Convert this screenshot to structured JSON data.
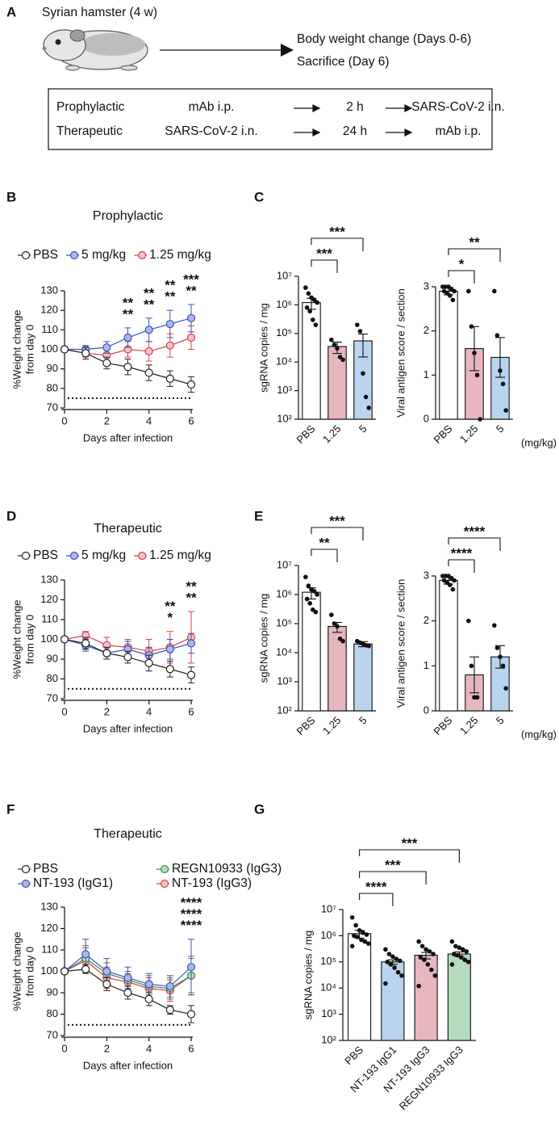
{
  "diagram": {
    "panel": "A",
    "subject": "Syrian hamster (4 w)",
    "outcomes": [
      "Body weight change (Days 0-6)",
      "Sacrifice (Day 6)"
    ],
    "schedule": [
      [
        "Prophylactic",
        "mAb i.p.",
        "2 h",
        "SARS-CoV-2 i.n."
      ],
      [
        "Therapeutic",
        "SARS-CoV-2 i.n.",
        "24 h",
        "mAb i.p."
      ]
    ]
  },
  "chart_data": [
    {
      "type": "line",
      "panel": "B",
      "title": "Prophylactic",
      "x": [
        0,
        1,
        2,
        3,
        4,
        5,
        6
      ],
      "xlim": [
        0,
        6
      ],
      "xticks": [
        0,
        2,
        4,
        6
      ],
      "ylim": [
        70,
        130
      ],
      "yticks": [
        70,
        80,
        90,
        100,
        110,
        120,
        130
      ],
      "x_label": "Days after infection",
      "y_label": [
        "%Weight change",
        "from day 0"
      ],
      "reference_line": 75,
      "legend": "top",
      "series": [
        {
          "name": "PBS",
          "color": "#222222",
          "marker_fill": "#ffffff",
          "values": [
            100,
            98,
            93,
            91,
            88,
            85,
            82
          ],
          "errors": [
            0,
            3,
            3,
            4,
            4,
            4,
            4
          ]
        },
        {
          "name": "5 mg/kg",
          "color": "#3f51b5",
          "marker_fill": "#aab8e8",
          "values": [
            100,
            100,
            101,
            106,
            110,
            113,
            116
          ],
          "errors": [
            0,
            2,
            3,
            5,
            6,
            7,
            7
          ]
        },
        {
          "name": "1.25 mg/kg",
          "color": "#d9404f",
          "marker_fill": "#f4c2c8",
          "values": [
            100,
            98,
            97,
            100,
            99,
            102,
            106
          ],
          "errors": [
            0,
            2,
            3,
            4,
            5,
            6,
            6
          ]
        }
      ],
      "annotations": [
        {
          "x": 3,
          "labels": [
            {
              "text": "**",
              "color": "#2e3192"
            },
            {
              "text": "**",
              "color": "#b5222c"
            }
          ]
        },
        {
          "x": 4,
          "labels": [
            {
              "text": "**",
              "color": "#2e3192"
            },
            {
              "text": "**",
              "color": "#b5222c"
            }
          ]
        },
        {
          "x": 5,
          "labels": [
            {
              "text": "**",
              "color": "#2e3192"
            },
            {
              "text": "**",
              "color": "#b5222c"
            }
          ]
        },
        {
          "x": 6,
          "labels": [
            {
              "text": "***",
              "color": "#2e3192"
            },
            {
              "text": "**",
              "color": "#b5222c"
            }
          ]
        }
      ]
    },
    {
      "type": "bar",
      "panel": "C",
      "yscale": "log",
      "categories": [
        "PBS",
        "1.25",
        "5"
      ],
      "values": [
        1200000,
        35000,
        55000
      ],
      "errors": [
        500000,
        15000,
        40000
      ],
      "colors": [
        "#ffffff",
        "#e7b6bf",
        "#b9d4ee"
      ],
      "points": [
        [
          4000000,
          2500000,
          1800000,
          1500000,
          1200000,
          800000,
          600000,
          300000,
          200000
        ],
        [
          60000,
          40000,
          30000,
          15000,
          12000
        ],
        [
          200000,
          120000,
          4000,
          600,
          250
        ]
      ],
      "ylim": [
        100,
        10000000
      ],
      "yticks": [
        {
          "value": 100,
          "label": "10²"
        },
        {
          "value": 1000,
          "label": "10³"
        },
        {
          "value": 10000,
          "label": "10⁴"
        },
        {
          "value": 100000,
          "label": "10⁵"
        },
        {
          "value": 1000000,
          "label": "10⁶"
        },
        {
          "value": 10000000,
          "label": "10⁷"
        }
      ],
      "y_label": "sgRNA copies / mg",
      "brackets": [
        {
          "from": "PBS",
          "to": "1.25",
          "label": "***"
        },
        {
          "from": "PBS",
          "to": "5",
          "label": "***"
        }
      ]
    },
    {
      "type": "bar",
      "categories": [
        "PBS",
        "1.25",
        "5"
      ],
      "values": [
        2.9,
        1.6,
        1.4
      ],
      "errors": [
        0.08,
        0.5,
        0.45
      ],
      "colors": [
        "#ffffff",
        "#e7b6bf",
        "#b9d4ee"
      ],
      "points": [
        [
          3,
          3,
          3,
          2.95,
          2.9,
          2.9,
          2.85,
          2.8,
          2.7
        ],
        [
          2.9,
          2.1,
          1.5,
          1,
          0
        ],
        [
          2.9,
          1.9,
          1.1,
          0.8,
          0.2
        ]
      ],
      "ylim": [
        0,
        3
      ],
      "yticks": [
        0,
        1,
        2,
        3
      ],
      "y_label": "Viral antigen score / section",
      "x_unit_label": "(mg/kg)",
      "brackets": [
        {
          "from": "PBS",
          "to": "1.25",
          "label": "*"
        },
        {
          "from": "PBS",
          "to": "5",
          "label": "**"
        }
      ]
    },
    {
      "type": "line",
      "panel": "D",
      "title": "Therapeutic",
      "x": [
        0,
        1,
        2,
        3,
        4,
        5,
        6
      ],
      "xlim": [
        0,
        6
      ],
      "xticks": [
        0,
        2,
        4,
        6
      ],
      "ylim": [
        70,
        130
      ],
      "yticks": [
        70,
        80,
        90,
        100,
        110,
        120,
        130
      ],
      "x_label": "Days after infection",
      "y_label": [
        "%Weight change",
        "from day 0"
      ],
      "reference_line": 75,
      "legend": "top",
      "series": [
        {
          "name": "PBS",
          "color": "#222222",
          "marker_fill": "#ffffff",
          "values": [
            100,
            98,
            93,
            91,
            88,
            85,
            82
          ],
          "errors": [
            0,
            3,
            3,
            3,
            4,
            4,
            4
          ]
        },
        {
          "name": "5 mg/kg",
          "color": "#3f51b5",
          "marker_fill": "#aab8e8",
          "values": [
            100,
            97,
            93,
            95,
            92,
            95,
            98
          ],
          "errors": [
            0,
            3,
            3,
            4,
            4,
            5,
            5
          ]
        },
        {
          "name": "1.25 mg/kg",
          "color": "#d9404f",
          "marker_fill": "#f4c2c8",
          "values": [
            100,
            102,
            97,
            96,
            94,
            96,
            101
          ],
          "errors": [
            0,
            2,
            4,
            4,
            6,
            8,
            13
          ]
        }
      ],
      "annotations": [
        {
          "x": 5,
          "labels": [
            {
              "text": "**",
              "color": "#2e3192"
            },
            {
              "text": "*",
              "color": "#b5222c"
            }
          ]
        },
        {
          "x": 6,
          "labels": [
            {
              "text": "**",
              "color": "#2e3192"
            },
            {
              "text": "**",
              "color": "#b5222c"
            }
          ]
        }
      ]
    },
    {
      "type": "bar",
      "panel": "E",
      "yscale": "log",
      "categories": [
        "PBS",
        "1.25",
        "5"
      ],
      "values": [
        1200000,
        80000,
        20000
      ],
      "errors": [
        500000,
        30000,
        4000
      ],
      "colors": [
        "#ffffff",
        "#e7b6bf",
        "#b9d4ee"
      ],
      "points": [
        [
          4000000,
          2000000,
          1500000,
          1300000,
          1000000,
          700000,
          500000,
          300000,
          250000
        ],
        [
          200000,
          100000,
          80000,
          30000,
          25000
        ],
        [
          25000,
          22000,
          20000,
          18000,
          17000
        ]
      ],
      "ylim": [
        100,
        10000000
      ],
      "yticks": [
        {
          "value": 100,
          "label": "10²"
        },
        {
          "value": 1000,
          "label": "10³"
        },
        {
          "value": 10000,
          "label": "10⁴"
        },
        {
          "value": 100000,
          "label": "10⁵"
        },
        {
          "value": 1000000,
          "label": "10⁶"
        },
        {
          "value": 10000000,
          "label": "10⁷"
        }
      ],
      "y_label": "sgRNA copies / mg",
      "brackets": [
        {
          "from": "PBS",
          "to": "1.25",
          "label": "**"
        },
        {
          "from": "PBS",
          "to": "5",
          "label": "***"
        }
      ]
    },
    {
      "type": "bar",
      "categories": [
        "PBS",
        "1.25",
        "5"
      ],
      "values": [
        2.9,
        0.8,
        1.2
      ],
      "errors": [
        0.08,
        0.4,
        0.25
      ],
      "colors": [
        "#ffffff",
        "#e7b6bf",
        "#b9d4ee"
      ],
      "points": [
        [
          3,
          3,
          3,
          2.95,
          2.9,
          2.9,
          2.85,
          2.8,
          2.7
        ],
        [
          2,
          1,
          0.3,
          0.3
        ],
        [
          1.9,
          1.4,
          1.2,
          1,
          0.5
        ]
      ],
      "ylim": [
        0,
        3
      ],
      "yticks": [
        0,
        1,
        2,
        3
      ],
      "y_label": "Viral antigen score / section",
      "x_unit_label": "(mg/kg)",
      "brackets": [
        {
          "from": "PBS",
          "to": "1.25",
          "label": "****"
        },
        {
          "from": "PBS",
          "to": "5",
          "label": "****"
        }
      ]
    },
    {
      "type": "line",
      "panel": "F",
      "title": "Therapeutic",
      "x": [
        0,
        1,
        2,
        3,
        4,
        5,
        6
      ],
      "xlim": [
        0,
        6
      ],
      "xticks": [
        0,
        2,
        4,
        6
      ],
      "ylim": [
        70,
        130
      ],
      "yticks": [
        70,
        80,
        90,
        100,
        110,
        120,
        130
      ],
      "x_label": "Days after infection",
      "y_label": [
        "%Weight change",
        "from day 0"
      ],
      "reference_line": 75,
      "legend": "top",
      "series": [
        {
          "name": "PBS",
          "color": "#222222",
          "marker_fill": "#ffffff",
          "values": [
            100,
            101,
            94,
            90,
            87,
            82,
            80
          ],
          "errors": [
            0,
            2,
            3,
            3,
            3,
            2,
            4
          ]
        },
        {
          "name": "NT-193 (IgG1)",
          "color": "#3f51b5",
          "marker_fill": "#aab8e8",
          "values": [
            100,
            108,
            100,
            97,
            94,
            93,
            102
          ],
          "errors": [
            0,
            7,
            6,
            5,
            5,
            5,
            13
          ]
        },
        {
          "name": "REGN10933 (IgG3)",
          "color": "#3a8a4a",
          "marker_fill": "#b5dbbd",
          "values": [
            100,
            106,
            99,
            96,
            93,
            92,
            98
          ],
          "errors": [
            0,
            6,
            5,
            4,
            5,
            5,
            8
          ]
        },
        {
          "name": "NT-193 (IgG3)",
          "color": "#d9404f",
          "marker_fill": "#f4c2c8",
          "values": [
            100,
            105,
            97,
            95,
            92,
            91,
            98
          ],
          "errors": [
            0,
            6,
            5,
            4,
            5,
            5,
            9
          ]
        }
      ],
      "annotations": [
        {
          "x": 6,
          "labels": [
            {
              "text": "****",
              "color": "#3a7d44"
            },
            {
              "text": "****",
              "color": "#2e3192"
            },
            {
              "text": "****",
              "color": "#b5222c"
            }
          ]
        }
      ]
    },
    {
      "type": "bar",
      "panel": "G",
      "yscale": "log",
      "categories": [
        "PBS",
        "NT-193 IgG1",
        "NT-193 IgG3",
        "REGN10933 IgG3"
      ],
      "values": [
        1200000,
        100000,
        180000,
        200000
      ],
      "errors": [
        400000,
        20000,
        50000,
        40000
      ],
      "colors": [
        "#ffffff",
        "#b9d4ee",
        "#e7b6bf",
        "#b5dbbd"
      ],
      "points": [
        [
          5000000,
          2500000,
          1600000,
          1300000,
          1100000,
          1000000,
          900000,
          700000,
          600000,
          500000,
          400000
        ],
        [
          300000,
          200000,
          160000,
          130000,
          110000,
          100000,
          80000,
          60000,
          40000,
          30000,
          15000
        ],
        [
          600000,
          400000,
          300000,
          250000,
          200000,
          150000,
          120000,
          80000,
          50000,
          30000,
          12000
        ],
        [
          600000,
          400000,
          350000,
          300000,
          250000,
          200000,
          180000,
          150000,
          120000,
          100000,
          80000
        ]
      ],
      "ylim": [
        100,
        10000000
      ],
      "yticks": [
        {
          "value": 100,
          "label": "10²"
        },
        {
          "value": 1000,
          "label": "10³"
        },
        {
          "value": 10000,
          "label": "10⁴"
        },
        {
          "value": 100000,
          "label": "10⁵"
        },
        {
          "value": 1000000,
          "label": "10⁶"
        },
        {
          "value": 10000000,
          "label": "10⁷"
        }
      ],
      "y_label": "sgRNA copies / mg",
      "brackets": [
        {
          "from": "PBS",
          "to": "NT-193 IgG1",
          "label": "****"
        },
        {
          "from": "PBS",
          "to": "NT-193 IgG3",
          "label": "***"
        },
        {
          "from": "PBS",
          "to": "REGN10933 IgG3",
          "label": "***"
        }
      ]
    }
  ]
}
